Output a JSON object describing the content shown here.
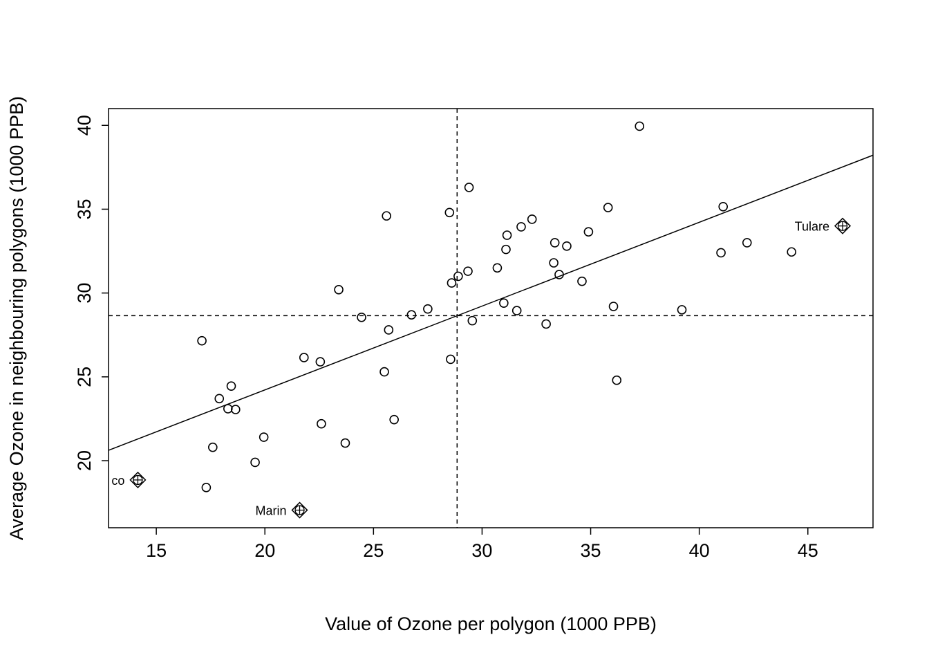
{
  "chart_data": {
    "type": "scatter",
    "title": "",
    "xlabel": "Value of Ozone per polygon (1000 PPB)",
    "ylabel": "Average Ozone in neighbouring polygons (1000 PPB)",
    "xlim": [
      12.8,
      48.0
    ],
    "ylim": [
      16.0,
      41.0
    ],
    "xticks": [
      "15",
      "20",
      "25",
      "30",
      "35",
      "40",
      "45"
    ],
    "yticks": [
      "20",
      "25",
      "30",
      "35",
      "40"
    ],
    "grid": false,
    "mean_x": 28.85,
    "mean_y": 28.65,
    "regression": {
      "slope": 0.5,
      "intercept": 14.22
    },
    "points": [
      {
        "x": 17.1,
        "y": 27.15
      },
      {
        "x": 17.3,
        "y": 18.4
      },
      {
        "x": 17.6,
        "y": 20.8
      },
      {
        "x": 17.9,
        "y": 23.7
      },
      {
        "x": 18.3,
        "y": 23.1
      },
      {
        "x": 18.45,
        "y": 24.45
      },
      {
        "x": 18.65,
        "y": 23.05
      },
      {
        "x": 19.55,
        "y": 19.9
      },
      {
        "x": 19.95,
        "y": 21.4
      },
      {
        "x": 21.8,
        "y": 26.15
      },
      {
        "x": 22.55,
        "y": 25.9
      },
      {
        "x": 22.6,
        "y": 22.2
      },
      {
        "x": 23.4,
        "y": 30.2
      },
      {
        "x": 23.7,
        "y": 21.05
      },
      {
        "x": 24.45,
        "y": 28.55
      },
      {
        "x": 25.5,
        "y": 25.3
      },
      {
        "x": 25.6,
        "y": 34.6
      },
      {
        "x": 25.7,
        "y": 27.8
      },
      {
        "x": 25.95,
        "y": 22.45
      },
      {
        "x": 26.75,
        "y": 28.7
      },
      {
        "x": 27.5,
        "y": 29.05
      },
      {
        "x": 28.5,
        "y": 34.8
      },
      {
        "x": 28.55,
        "y": 26.05
      },
      {
        "x": 28.6,
        "y": 30.6
      },
      {
        "x": 28.9,
        "y": 31.0
      },
      {
        "x": 29.35,
        "y": 31.3
      },
      {
        "x": 29.4,
        "y": 36.3
      },
      {
        "x": 29.55,
        "y": 28.35
      },
      {
        "x": 30.7,
        "y": 31.5
      },
      {
        "x": 31.0,
        "y": 29.4
      },
      {
        "x": 31.1,
        "y": 32.6
      },
      {
        "x": 31.15,
        "y": 33.45
      },
      {
        "x": 31.6,
        "y": 28.95
      },
      {
        "x": 31.8,
        "y": 33.95
      },
      {
        "x": 32.3,
        "y": 34.4
      },
      {
        "x": 32.95,
        "y": 28.15
      },
      {
        "x": 33.3,
        "y": 31.8
      },
      {
        "x": 33.35,
        "y": 33.0
      },
      {
        "x": 33.55,
        "y": 31.1
      },
      {
        "x": 33.9,
        "y": 32.8
      },
      {
        "x": 34.6,
        "y": 30.7
      },
      {
        "x": 34.9,
        "y": 33.65
      },
      {
        "x": 35.8,
        "y": 35.1
      },
      {
        "x": 36.05,
        "y": 29.2
      },
      {
        "x": 36.2,
        "y": 24.8
      },
      {
        "x": 37.25,
        "y": 39.95
      },
      {
        "x": 39.2,
        "y": 29.0
      },
      {
        "x": 41.0,
        "y": 32.4
      },
      {
        "x": 41.1,
        "y": 35.15
      },
      {
        "x": 42.2,
        "y": 33.0
      },
      {
        "x": 44.25,
        "y": 32.45
      }
    ],
    "influential_points": [
      {
        "x": 14.15,
        "y": 18.85,
        "label": "co"
      },
      {
        "x": 21.6,
        "y": 17.05,
        "label": "Marin"
      },
      {
        "x": 46.6,
        "y": 34.0,
        "label": "Tulare"
      }
    ]
  }
}
